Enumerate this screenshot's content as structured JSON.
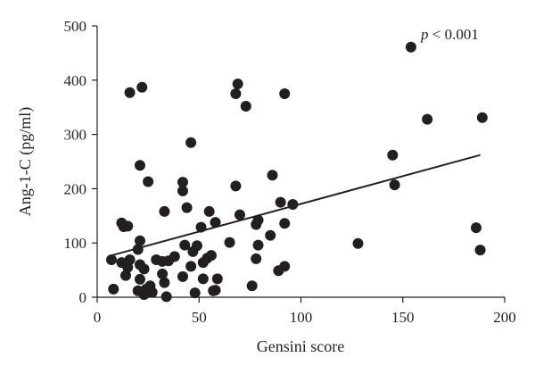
{
  "chart_data": {
    "type": "scatter",
    "title": "",
    "xlabel": "Gensini score",
    "ylabel": "Ang-1-C (pg/ml)",
    "xlim": [
      0,
      200
    ],
    "ylim": [
      0,
      500
    ],
    "xticks": [
      0,
      50,
      100,
      150,
      200
    ],
    "yticks": [
      0,
      100,
      200,
      300,
      400,
      500
    ],
    "grid": false,
    "annotation": "p < 0.001",
    "colors": {
      "points": "#231f20",
      "axes": "#231f20",
      "fit": "#231f20"
    },
    "fit_line": {
      "x": [
        7,
        188
      ],
      "y": [
        77,
        262
      ]
    },
    "points": [
      {
        "x": 7,
        "y": 69
      },
      {
        "x": 8,
        "y": 15
      },
      {
        "x": 12,
        "y": 137
      },
      {
        "x": 12,
        "y": 64
      },
      {
        "x": 13,
        "y": 130
      },
      {
        "x": 14,
        "y": 40
      },
      {
        "x": 15,
        "y": 131
      },
      {
        "x": 15,
        "y": 55
      },
      {
        "x": 16,
        "y": 69
      },
      {
        "x": 16,
        "y": 377
      },
      {
        "x": 20,
        "y": 12
      },
      {
        "x": 20,
        "y": 88
      },
      {
        "x": 21,
        "y": 60
      },
      {
        "x": 21,
        "y": 104
      },
      {
        "x": 21,
        "y": 243
      },
      {
        "x": 21,
        "y": 33
      },
      {
        "x": 22,
        "y": 387
      },
      {
        "x": 23,
        "y": 5
      },
      {
        "x": 23,
        "y": 52
      },
      {
        "x": 24,
        "y": 15
      },
      {
        "x": 25,
        "y": 213
      },
      {
        "x": 26,
        "y": 21
      },
      {
        "x": 27,
        "y": 9
      },
      {
        "x": 29,
        "y": 69
      },
      {
        "x": 32,
        "y": 66
      },
      {
        "x": 32,
        "y": 43
      },
      {
        "x": 33,
        "y": 158
      },
      {
        "x": 33,
        "y": 27
      },
      {
        "x": 34,
        "y": 1
      },
      {
        "x": 35,
        "y": 67
      },
      {
        "x": 38,
        "y": 75
      },
      {
        "x": 42,
        "y": 212
      },
      {
        "x": 42,
        "y": 196
      },
      {
        "x": 42,
        "y": 38
      },
      {
        "x": 43,
        "y": 96
      },
      {
        "x": 44,
        "y": 165
      },
      {
        "x": 46,
        "y": 285
      },
      {
        "x": 46,
        "y": 57
      },
      {
        "x": 47,
        "y": 84
      },
      {
        "x": 48,
        "y": 8
      },
      {
        "x": 49,
        "y": 95
      },
      {
        "x": 51,
        "y": 129
      },
      {
        "x": 52,
        "y": 34
      },
      {
        "x": 52,
        "y": 64
      },
      {
        "x": 54,
        "y": 72
      },
      {
        "x": 55,
        "y": 158
      },
      {
        "x": 56,
        "y": 77
      },
      {
        "x": 57,
        "y": 12
      },
      {
        "x": 58,
        "y": 138
      },
      {
        "x": 58,
        "y": 13
      },
      {
        "x": 59,
        "y": 34
      },
      {
        "x": 65,
        "y": 101
      },
      {
        "x": 68,
        "y": 205
      },
      {
        "x": 68,
        "y": 375
      },
      {
        "x": 69,
        "y": 393
      },
      {
        "x": 70,
        "y": 152
      },
      {
        "x": 73,
        "y": 352
      },
      {
        "x": 76,
        "y": 21
      },
      {
        "x": 78,
        "y": 71
      },
      {
        "x": 78,
        "y": 134
      },
      {
        "x": 79,
        "y": 142
      },
      {
        "x": 79,
        "y": 96
      },
      {
        "x": 85,
        "y": 114
      },
      {
        "x": 86,
        "y": 225
      },
      {
        "x": 89,
        "y": 49
      },
      {
        "x": 90,
        "y": 175
      },
      {
        "x": 92,
        "y": 375
      },
      {
        "x": 92,
        "y": 57
      },
      {
        "x": 92,
        "y": 136
      },
      {
        "x": 96,
        "y": 171
      },
      {
        "x": 128,
        "y": 99
      },
      {
        "x": 145,
        "y": 262
      },
      {
        "x": 146,
        "y": 207
      },
      {
        "x": 154,
        "y": 461
      },
      {
        "x": 162,
        "y": 328
      },
      {
        "x": 186,
        "y": 128
      },
      {
        "x": 188,
        "y": 87
      },
      {
        "x": 189,
        "y": 331
      }
    ]
  }
}
